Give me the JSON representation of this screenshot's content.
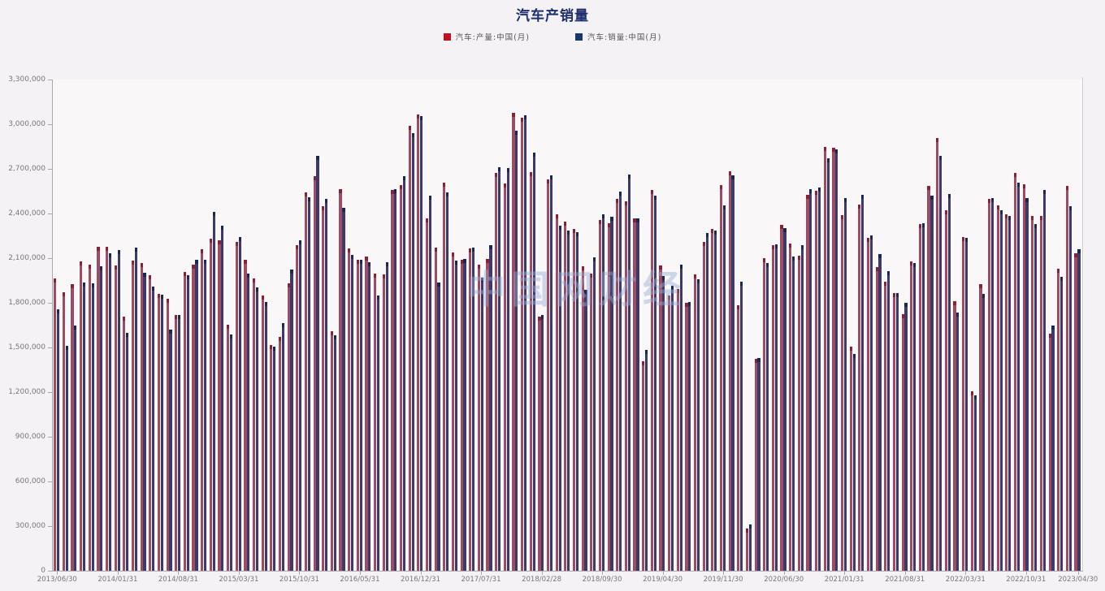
{
  "page": {
    "background": "#f5f2f5",
    "watermark_text": "中国网财经"
  },
  "chart": {
    "title": "汽车产销量",
    "title_color": "#1c2f6e",
    "legend": [
      {
        "label": "汽车:产量:中国(月)",
        "swatch_color": "#bf1220"
      },
      {
        "label": "汽车:销量:中国(月)",
        "swatch_color": "#17386d"
      }
    ]
  },
  "chart_data": {
    "type": "bar",
    "title": "汽车产销量",
    "x_frequency": "monthly",
    "x_start": "2013/06",
    "x_end": "2023/04",
    "n_points": 119,
    "ylim": [
      0,
      3300000
    ],
    "ytick_step": 300000,
    "ytick_labels": [
      "0",
      "300,000",
      "600,000",
      "900,000",
      "1,200,000",
      "1,500,000",
      "1,800,000",
      "2,100,000",
      "2,400,000",
      "2,700,000",
      "3,000,000",
      "3,300,000"
    ],
    "grid": false,
    "legend_position": "top-center",
    "xticks": [
      {
        "index": 0,
        "label": "2013/06/30"
      },
      {
        "index": 7,
        "label": "2014/01/31"
      },
      {
        "index": 14,
        "label": "2014/08/31"
      },
      {
        "index": 21,
        "label": "2015/03/31"
      },
      {
        "index": 28,
        "label": "2015/10/31"
      },
      {
        "index": 35,
        "label": "2016/05/31"
      },
      {
        "index": 42,
        "label": "2016/12/31"
      },
      {
        "index": 49,
        "label": "2017/07/31"
      },
      {
        "index": 56,
        "label": "2018/02/28"
      },
      {
        "index": 63,
        "label": "2018/09/30"
      },
      {
        "index": 70,
        "label": "2019/04/30"
      },
      {
        "index": 77,
        "label": "2019/11/30"
      },
      {
        "index": 84,
        "label": "2020/06/30"
      },
      {
        "index": 91,
        "label": "2021/01/31"
      },
      {
        "index": 98,
        "label": "2021/08/31"
      },
      {
        "index": 105,
        "label": "2022/03/31"
      },
      {
        "index": 112,
        "label": "2022/10/31"
      },
      {
        "index": 118,
        "label": "2023/04/30"
      }
    ],
    "series": [
      {
        "name": "汽车:产量:中国(月)",
        "color": "#9c4d63",
        "cap_color": "#8a2136",
        "values": [
          1963000,
          1871000,
          1926000,
          2076000,
          2055000,
          2177000,
          2179000,
          2051000,
          1708000,
          2086000,
          2066000,
          1986000,
          1858000,
          1829000,
          1716000,
          2008000,
          2056000,
          2160000,
          2231000,
          2222000,
          1652000,
          2207000,
          2088000,
          1962000,
          1851000,
          1518000,
          1569000,
          1933000,
          2186000,
          2544000,
          2652000,
          2452000,
          1611000,
          2564000,
          2168000,
          2087000,
          2113000,
          1997000,
          1991000,
          2561000,
          2589000,
          2992000,
          3063000,
          2369000,
          2169000,
          2608000,
          2138000,
          2087000,
          2167000,
          2059000,
          2093000,
          2671000,
          2604000,
          3079000,
          3042000,
          2681000,
          1707000,
          2628000,
          2397000,
          2344000,
          2295000,
          2043000,
          1999000,
          2356000,
          2334000,
          2498000,
          2482000,
          2365000,
          1410000,
          2560000,
          2052000,
          1848000,
          1895000,
          1801000,
          1991000,
          2209000,
          2295000,
          2593000,
          2683000,
          1783000,
          285000,
          1422000,
          2102000,
          2187000,
          2325000,
          2201000,
          2119000,
          2524000,
          2552000,
          2847000,
          2840000,
          2388000,
          1503000,
          2462000,
          2234000,
          2040000,
          1943000,
          1863000,
          1725000,
          2077000,
          2330000,
          2585000,
          2907000,
          2422000,
          1813000,
          2241000,
          1205000,
          1926000,
          2499000,
          2455000,
          2395000,
          2672000,
          2599000,
          2386000,
          2383000,
          1594000,
          2032000,
          2584000,
          2133000
        ]
      },
      {
        "name": "汽车:销量:中国(月)",
        "color": "#3d3a69",
        "cap_color": "#182851",
        "values": [
          1755000,
          1511000,
          1649000,
          1936000,
          1933000,
          2045000,
          2134000,
          2156000,
          1596000,
          2169000,
          2000000,
          1912000,
          1855000,
          1622000,
          1716000,
          1984000,
          2092000,
          2091000,
          2410000,
          2320000,
          1589000,
          2244000,
          1994000,
          1904000,
          1803000,
          1503000,
          1664000,
          2025000,
          2222000,
          2509000,
          2786000,
          2501000,
          1581000,
          2440000,
          2122000,
          2092000,
          2071000,
          1852000,
          2071000,
          2564000,
          2650000,
          2939000,
          3057000,
          2519000,
          1939000,
          2543000,
          2084000,
          2096000,
          2172000,
          1971000,
          2186000,
          2709000,
          2704000,
          2958000,
          3060000,
          2809000,
          1718000,
          2656000,
          2319000,
          2288000,
          2274000,
          1889000,
          2103000,
          2394000,
          2380000,
          2548000,
          2661000,
          2367000,
          1482000,
          2520000,
          1980000,
          1913000,
          2056000,
          1808000,
          1958000,
          2271000,
          2284000,
          2457000,
          2658000,
          1941000,
          310000,
          1430000,
          2070000,
          2194000,
          2300000,
          2112000,
          2186000,
          2565000,
          2573000,
          2770000,
          2831000,
          2503000,
          1455000,
          2526000,
          2252000,
          2128000,
          2015000,
          1864000,
          1799000,
          2067000,
          2333000,
          2522000,
          2786000,
          2531000,
          1737000,
          2234000,
          1181000,
          1862000,
          2502000,
          2420000,
          2383000,
          2610000,
          2505000,
          2328000,
          2556000,
          1649000,
          1976000,
          2451000,
          2159000
        ]
      }
    ]
  }
}
